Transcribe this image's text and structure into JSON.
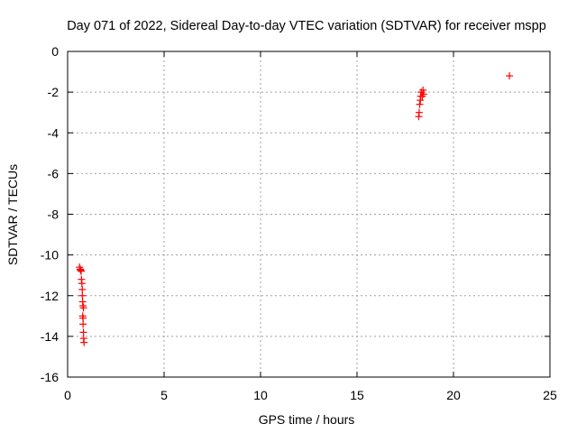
{
  "chart_data": {
    "type": "scatter",
    "title": "Day 071 of 2022, Sidereal Day-to-day VTEC variation (SDTVAR) for receiver mspp",
    "xlabel": "GPS time / hours",
    "ylabel": "SDTVAR / TECUs",
    "xlim": [
      0,
      25
    ],
    "ylim": [
      -16,
      0
    ],
    "x_ticks": [
      0,
      5,
      10,
      15,
      20,
      25
    ],
    "y_ticks": [
      -16,
      -14,
      -12,
      -10,
      -8,
      -6,
      -4,
      -2,
      0
    ],
    "x_tick_labels": [
      "0",
      "5",
      "10",
      "15",
      "20",
      "25"
    ],
    "y_tick_labels": [
      "-16",
      "-14",
      "-12",
      "-10",
      "-8",
      "-6",
      "-4",
      "-2",
      "0"
    ],
    "grid": true,
    "marker": "plus",
    "color": "#ff0000",
    "series": [
      {
        "points": [
          [
            0.62,
            -10.6
          ],
          [
            0.65,
            -10.7
          ],
          [
            0.68,
            -10.75
          ],
          [
            0.7,
            -10.8
          ],
          [
            0.72,
            -11.2
          ],
          [
            0.74,
            -11.4
          ],
          [
            0.76,
            -11.7
          ],
          [
            0.76,
            -12.0
          ],
          [
            0.78,
            -12.3
          ],
          [
            0.8,
            -12.5
          ],
          [
            0.82,
            -12.6
          ],
          [
            0.78,
            -13.0
          ],
          [
            0.8,
            -13.1
          ],
          [
            0.8,
            -13.4
          ],
          [
            0.82,
            -13.8
          ],
          [
            0.83,
            -14.1
          ],
          [
            0.85,
            -14.3
          ],
          [
            18.2,
            -3.2
          ],
          [
            18.22,
            -3.0
          ],
          [
            18.25,
            -2.6
          ],
          [
            18.28,
            -2.4
          ],
          [
            18.3,
            -2.2
          ],
          [
            18.33,
            -2.0
          ],
          [
            18.38,
            -2.2
          ],
          [
            18.42,
            -1.9
          ],
          [
            18.45,
            -2.1
          ],
          [
            22.9,
            -1.2
          ]
        ]
      }
    ]
  }
}
